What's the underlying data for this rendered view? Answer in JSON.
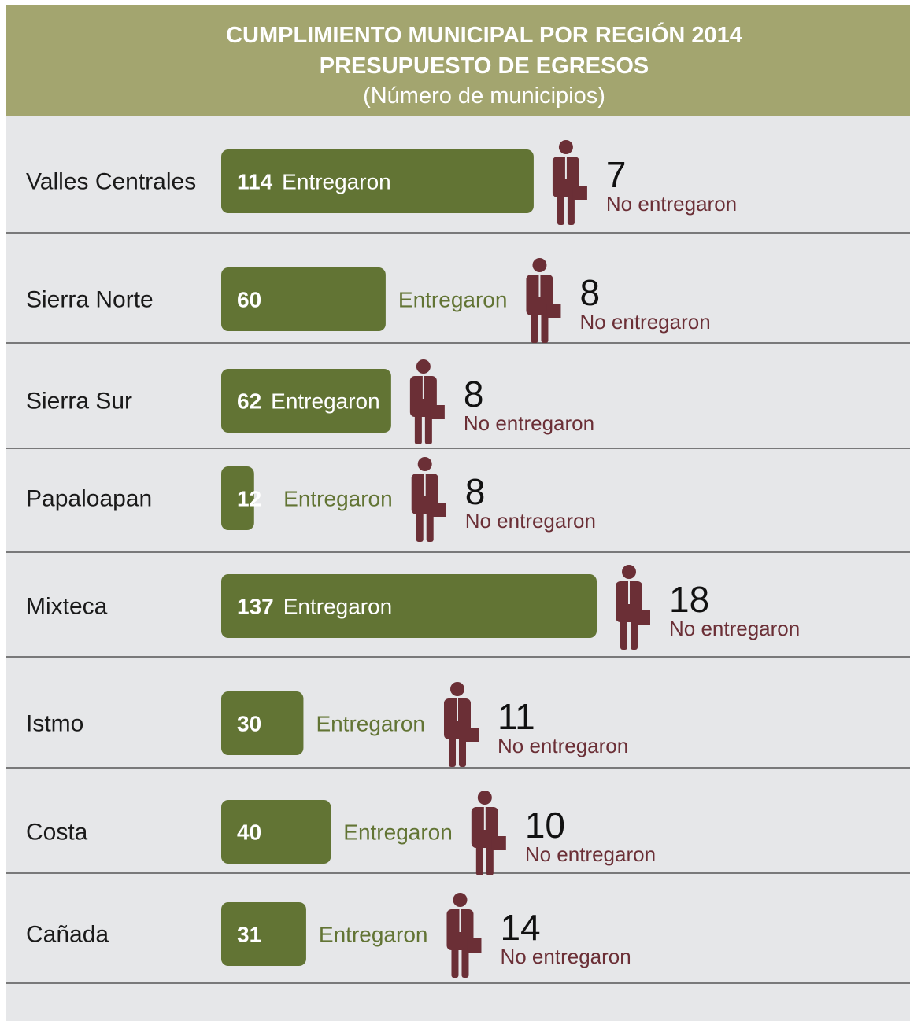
{
  "chart_data": {
    "type": "bar",
    "title": "CUMPLIMIENTO MUNICIPAL POR REGIÓN 2014",
    "subtitle": "PRESUPUESTO DE EGRESOS",
    "note": "(Número de municipios)",
    "categories": [
      "Valles Centrales",
      "Sierra Norte",
      "Sierra Sur",
      "Papaloapan",
      "Mixteca",
      "Istmo",
      "Costa",
      "Cañada"
    ],
    "series": [
      {
        "name": "Entregaron",
        "color": "#627434",
        "values": [
          114,
          60,
          62,
          12,
          137,
          30,
          40,
          31
        ]
      },
      {
        "name": "No entregaron",
        "color": "#6b2f36",
        "values": [
          7,
          8,
          8,
          8,
          18,
          11,
          10,
          14
        ]
      }
    ]
  }
}
